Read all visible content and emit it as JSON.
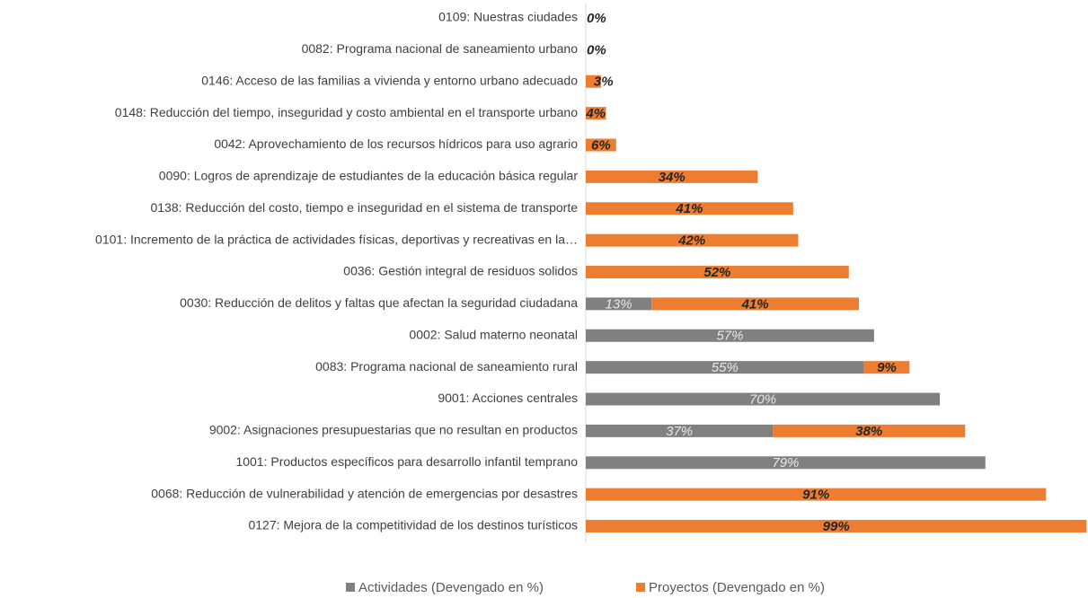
{
  "chart_data": {
    "type": "stacked-barh",
    "categories": [
      "0109: Nuestras ciudades",
      "0082: Programa nacional de saneamiento urbano",
      "0146: Acceso de las familias a vivienda y entorno urbano adecuado",
      "0148: Reducción del tiempo, inseguridad y costo ambiental en el transporte urbano",
      "0042: Aprovechamiento de los recursos hídricos para uso agrario",
      "0090: Logros de aprendizaje de estudiantes de la educación básica regular",
      "0138: Reducción del costo, tiempo e inseguridad en el sistema de transporte",
      "0101: Incremento de la práctica de actividades físicas, deportivas y recreativas en la…",
      "0036: Gestión integral de residuos solidos",
      "0030: Reducción de delitos y faltas que afectan la seguridad ciudadana",
      "0002: Salud materno neonatal",
      "0083: Programa nacional de saneamiento rural",
      "9001: Acciones centrales",
      "9002: Asignaciones presupuestarias que no resultan en productos",
      "1001: Productos específicos para desarrollo infantil temprano",
      "0068: Reducción de vulnerabilidad y atención de emergencias por desastres",
      "0127: Mejora de la competitividad de los destinos turísticos"
    ],
    "series": [
      {
        "name": "Actividades (Devengado en %)",
        "color": "#808080",
        "values": [
          null,
          null,
          null,
          null,
          null,
          null,
          null,
          null,
          null,
          13,
          57,
          55,
          70,
          37,
          79,
          null,
          null
        ],
        "value_labels": [
          null,
          null,
          null,
          null,
          null,
          null,
          null,
          null,
          null,
          "13%",
          "57%",
          "55%",
          "70%",
          "37%",
          "79%",
          null,
          null
        ]
      },
      {
        "name": "Proyectos (Devengado en %)",
        "color": "#ed7d31",
        "values": [
          0,
          0,
          3,
          4,
          6,
          34,
          41,
          42,
          52,
          41,
          null,
          9,
          null,
          38,
          null,
          91,
          99
        ],
        "value_labels": [
          "0%",
          "0%",
          "3%",
          "4%",
          "6%",
          "34%",
          "41%",
          "42%",
          "52%",
          "41%",
          null,
          "9%",
          null,
          "38%",
          null,
          "91%",
          "99%"
        ]
      }
    ],
    "xlim": [
      0,
      100
    ],
    "legend": "bottom"
  }
}
